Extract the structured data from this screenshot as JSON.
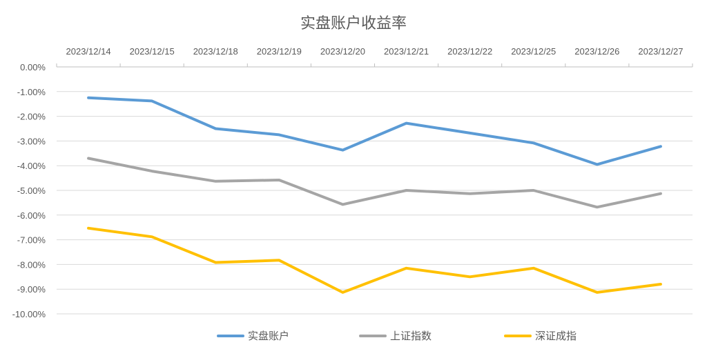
{
  "chart_data": {
    "type": "line",
    "title": "实盘账户收益率",
    "categories": [
      "2023/12/14",
      "2023/12/15",
      "2023/12/18",
      "2023/12/19",
      "2023/12/20",
      "2023/12/21",
      "2023/12/22",
      "2023/12/25",
      "2023/12/26",
      "2023/12/27"
    ],
    "series": [
      {
        "name": "实盘账户",
        "color": "#5B9BD5",
        "values": [
          -1.25,
          -1.38,
          -2.5,
          -2.75,
          -3.37,
          -2.28,
          -2.68,
          -3.08,
          -3.95,
          -3.22
        ]
      },
      {
        "name": "上证指数",
        "color": "#A5A5A5",
        "values": [
          -3.7,
          -4.22,
          -4.63,
          -4.58,
          -5.57,
          -5.0,
          -5.13,
          -5.0,
          -5.68,
          -5.13
        ]
      },
      {
        "name": "深证成指",
        "color": "#FFC000",
        "values": [
          -6.53,
          -6.88,
          -7.92,
          -7.83,
          -9.13,
          -8.15,
          -8.5,
          -8.15,
          -9.13,
          -8.8
        ]
      }
    ],
    "ylim": [
      -10,
      0
    ],
    "y_ticks": [
      "0.00%",
      "-1.00%",
      "-2.00%",
      "-3.00%",
      "-4.00%",
      "-5.00%",
      "-6.00%",
      "-7.00%",
      "-8.00%",
      "-9.00%",
      "-10.00%"
    ],
    "x_axis_position": "top",
    "legend_position": "bottom",
    "grid": true
  }
}
